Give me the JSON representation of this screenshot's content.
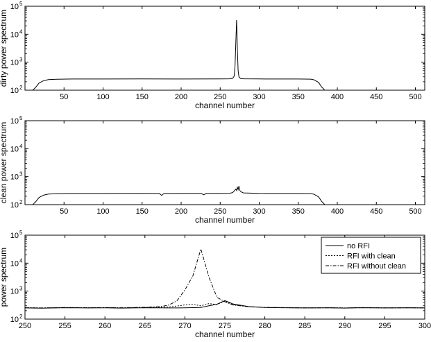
{
  "chart_data": [
    {
      "type": "line",
      "xlabel": "channel number",
      "ylabel": "dirty power spectrum",
      "xlim": [
        0,
        512
      ],
      "ylim": [
        100,
        100000
      ],
      "yscale": "log",
      "xticks": [
        50,
        100,
        150,
        200,
        250,
        300,
        350,
        400,
        450,
        500
      ],
      "xtick_labels": [
        "50",
        "100",
        "150",
        "200",
        "250",
        "300",
        "350",
        "400",
        "450",
        "500"
      ],
      "yticks": [
        100,
        1000,
        10000,
        100000
      ],
      "ytick_labels": [
        [
          "10",
          "2"
        ],
        [
          "10",
          "3"
        ],
        [
          "10",
          "4"
        ],
        [
          "10",
          "5"
        ]
      ],
      "grid": false,
      "series": [
        {
          "x": [
            10,
            14,
            18,
            24,
            30,
            40,
            60,
            100,
            150,
            200,
            250,
            262,
            266,
            268,
            269,
            270,
            271,
            272,
            273,
            274,
            276,
            280,
            300,
            350,
            366,
            370,
            376,
            380,
            384
          ],
          "y": [
            100,
            130,
            180,
            220,
            240,
            245,
            250,
            250,
            252,
            250,
            252,
            255,
            265,
            320,
            700,
            5000,
            32000,
            3000,
            500,
            300,
            262,
            255,
            252,
            250,
            248,
            235,
            190,
            130,
            100
          ],
          "style": "solid"
        }
      ]
    },
    {
      "type": "line",
      "xlabel": "channel number",
      "ylabel": "clean power spectrum",
      "xlim": [
        0,
        512
      ],
      "ylim": [
        100,
        100000
      ],
      "yscale": "log",
      "xticks": [
        50,
        100,
        150,
        200,
        250,
        300,
        350,
        400,
        450,
        500
      ],
      "xtick_labels": [
        "50",
        "100",
        "150",
        "200",
        "250",
        "300",
        "350",
        "400",
        "450",
        "500"
      ],
      "yticks": [
        100,
        1000,
        10000,
        100000
      ],
      "ytick_labels": [
        [
          "10",
          "2"
        ],
        [
          "10",
          "3"
        ],
        [
          "10",
          "4"
        ],
        [
          "10",
          "5"
        ]
      ],
      "grid": false,
      "series": [
        {
          "x": [
            10,
            14,
            18,
            24,
            30,
            40,
            60,
            100,
            150,
            172,
            175,
            178,
            200,
            226,
            229,
            232,
            250,
            262,
            266,
            268,
            270,
            271,
            272,
            273,
            274,
            275,
            276,
            278,
            280,
            300,
            350,
            366,
            370,
            376,
            380,
            384
          ],
          "y": [
            100,
            130,
            180,
            220,
            240,
            245,
            250,
            250,
            252,
            250,
            215,
            250,
            252,
            250,
            225,
            250,
            252,
            255,
            270,
            310,
            360,
            320,
            420,
            350,
            460,
            330,
            300,
            275,
            262,
            252,
            250,
            248,
            235,
            190,
            130,
            100
          ],
          "style": "solid"
        }
      ]
    },
    {
      "type": "line",
      "xlabel": "channel number",
      "ylabel": "power spectrum",
      "xlim": [
        250,
        300
      ],
      "ylim": [
        100,
        100000
      ],
      "yscale": "log",
      "xticks": [
        250,
        255,
        260,
        265,
        270,
        275,
        280,
        285,
        290,
        295,
        300
      ],
      "xtick_labels": [
        "250",
        "255",
        "260",
        "265",
        "270",
        "275",
        "280",
        "285",
        "290",
        "295",
        "300"
      ],
      "yticks": [
        100,
        1000,
        10000,
        100000
      ],
      "ytick_labels": [
        [
          "10",
          "2"
        ],
        [
          "10",
          "3"
        ],
        [
          "10",
          "4"
        ],
        [
          "10",
          "5"
        ]
      ],
      "grid": false,
      "legend": "top-right",
      "series": [
        {
          "name": "no RFI",
          "style": "solid",
          "x": [
            250,
            252,
            255,
            258,
            260,
            262,
            265,
            268,
            270,
            272,
            273,
            274,
            275,
            276,
            278,
            280,
            282,
            285,
            288,
            290,
            292,
            295,
            298,
            300
          ],
          "y": [
            250,
            245,
            255,
            250,
            252,
            248,
            255,
            250,
            252,
            260,
            300,
            340,
            460,
            350,
            280,
            260,
            255,
            250,
            252,
            248,
            255,
            250,
            252,
            250
          ]
        },
        {
          "name": "RFI with clean",
          "style": "dotted",
          "x": [
            250,
            252,
            255,
            258,
            260,
            262,
            265,
            268,
            270,
            271,
            272,
            273,
            274,
            275,
            276,
            278,
            280,
            282,
            285,
            288,
            290,
            292,
            295,
            298,
            300
          ],
          "y": [
            255,
            250,
            260,
            255,
            258,
            252,
            260,
            270,
            320,
            340,
            300,
            360,
            330,
            440,
            330,
            280,
            262,
            258,
            252,
            255,
            250,
            258,
            252,
            255,
            252
          ]
        },
        {
          "name": "RFI without clean",
          "style": "dashdot",
          "x": [
            250,
            252,
            255,
            258,
            260,
            262,
            265,
            267,
            268,
            269,
            270,
            271,
            272,
            273,
            274,
            275,
            276,
            278,
            280,
            282,
            285,
            288,
            290,
            292,
            295,
            298,
            300
          ],
          "y": [
            255,
            250,
            260,
            255,
            258,
            255,
            265,
            280,
            320,
            450,
            1100,
            3500,
            32000,
            3200,
            600,
            420,
            320,
            275,
            262,
            258,
            252,
            255,
            250,
            258,
            252,
            255,
            252
          ]
        }
      ]
    }
  ]
}
